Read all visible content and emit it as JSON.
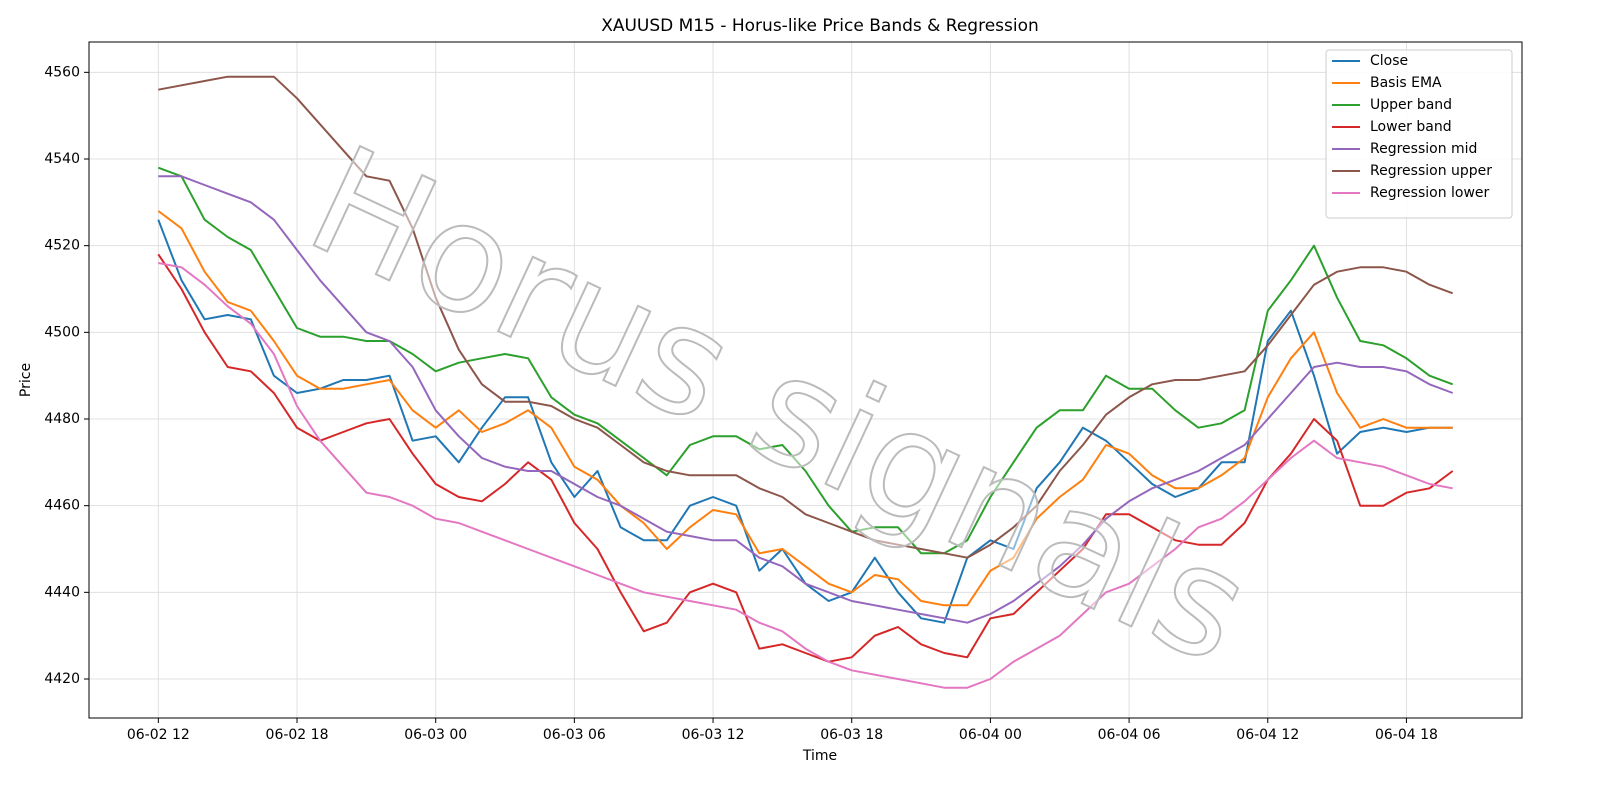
{
  "chart_data": {
    "type": "line",
    "title": "XAUUSD M15 - Horus-like Price Bands & Regression",
    "x_label": "Time",
    "y_label": "Price",
    "watermark": "Horus signals",
    "x": [
      "06-02 12",
      "06-02 13",
      "06-02 14",
      "06-02 15",
      "06-02 16",
      "06-02 17",
      "06-02 18",
      "06-02 19",
      "06-02 20",
      "06-02 21",
      "06-02 22",
      "06-02 23",
      "06-03 00",
      "06-03 01",
      "06-03 02",
      "06-03 03",
      "06-03 04",
      "06-03 05",
      "06-03 06",
      "06-03 07",
      "06-03 08",
      "06-03 09",
      "06-03 10",
      "06-03 11",
      "06-03 12",
      "06-03 13",
      "06-03 14",
      "06-03 15",
      "06-03 16",
      "06-03 17",
      "06-03 18",
      "06-03 19",
      "06-03 20",
      "06-03 21",
      "06-03 22",
      "06-03 23",
      "06-04 00",
      "06-04 01",
      "06-04 02",
      "06-04 03",
      "06-04 04",
      "06-04 05",
      "06-04 06",
      "06-04 07",
      "06-04 08",
      "06-04 09",
      "06-04 10",
      "06-04 11",
      "06-04 12",
      "06-04 13",
      "06-04 14",
      "06-04 15",
      "06-04 16",
      "06-04 17",
      "06-04 18",
      "06-04 19",
      "06-04 20"
    ],
    "series": [
      {
        "name": "Close",
        "color": "#1f77b4",
        "values": [
          4526,
          4512,
          4503,
          4504,
          4503,
          4490,
          4486,
          4487,
          4489,
          4489,
          4490,
          4475,
          4476,
          4470,
          4478,
          4485,
          4485,
          4470,
          4462,
          4468,
          4455,
          4452,
          4452,
          4460,
          4462,
          4460,
          4445,
          4450,
          4442,
          4438,
          4440,
          4448,
          4440,
          4434,
          4433,
          4448,
          4452,
          4450,
          4464,
          4470,
          4478,
          4475,
          4470,
          4465,
          4462,
          4464,
          4470,
          4470,
          4498,
          4505,
          4490,
          4472,
          4477,
          4478,
          4477,
          4478,
          4478
        ]
      },
      {
        "name": "Basis EMA",
        "color": "#ff7f0e",
        "values": [
          4528,
          4524,
          4514,
          4507,
          4505,
          4498,
          4490,
          4487,
          4487,
          4488,
          4489,
          4482,
          4478,
          4482,
          4477,
          4479,
          4482,
          4478,
          4469,
          4466,
          4460,
          4456,
          4450,
          4455,
          4459,
          4458,
          4449,
          4450,
          4446,
          4442,
          4440,
          4444,
          4443,
          4438,
          4437,
          4437,
          4445,
          4448,
          4457,
          4462,
          4466,
          4474,
          4472,
          4467,
          4464,
          4464,
          4467,
          4471,
          4485,
          4494,
          4500,
          4486,
          4478,
          4480,
          4478,
          4478,
          4478
        ]
      },
      {
        "name": "Upper band",
        "color": "#2ca02c",
        "values": [
          4538,
          4536,
          4526,
          4522,
          4519,
          4510,
          4501,
          4499,
          4499,
          4498,
          4498,
          4495,
          4491,
          4493,
          4494,
          4495,
          4494,
          4485,
          4481,
          4479,
          4475,
          4471,
          4467,
          4474,
          4476,
          4476,
          4473,
          4474,
          4468,
          4460,
          4454,
          4455,
          4455,
          4449,
          4449,
          4452,
          4462,
          4470,
          4478,
          4482,
          4482,
          4490,
          4487,
          4487,
          4482,
          4478,
          4479,
          4482,
          4505,
          4512,
          4520,
          4508,
          4498,
          4497,
          4494,
          4490,
          4488
        ]
      },
      {
        "name": "Lower band",
        "color": "#d62728",
        "values": [
          4518,
          4510,
          4500,
          4492,
          4491,
          4486,
          4478,
          4475,
          4477,
          4479,
          4480,
          4472,
          4465,
          4462,
          4461,
          4465,
          4470,
          4466,
          4456,
          4450,
          4440,
          4431,
          4433,
          4440,
          4442,
          4440,
          4427,
          4428,
          4426,
          4424,
          4425,
          4430,
          4432,
          4428,
          4426,
          4425,
          4434,
          4435,
          4440,
          4445,
          4450,
          4458,
          4458,
          4455,
          4452,
          4451,
          4451,
          4456,
          4466,
          4472,
          4480,
          4475,
          4460,
          4460,
          4463,
          4464,
          4468
        ]
      },
      {
        "name": "Regression mid",
        "color": "#9467bd",
        "values": [
          4536,
          4536,
          4534,
          4532,
          4530,
          4526,
          4519,
          4512,
          4506,
          4500,
          4498,
          4492,
          4482,
          4476,
          4471,
          4469,
          4468,
          4468,
          4465,
          4462,
          4460,
          4457,
          4454,
          4453,
          4452,
          4452,
          4448,
          4446,
          4442,
          4440,
          4438,
          4437,
          4436,
          4435,
          4434,
          4433,
          4435,
          4438,
          4442,
          4446,
          4451,
          4457,
          4461,
          4464,
          4466,
          4468,
          4471,
          4474,
          4480,
          4486,
          4492,
          4493,
          4492,
          4492,
          4491,
          4488,
          4486
        ]
      },
      {
        "name": "Regression upper",
        "color": "#8c564b",
        "values": [
          4556,
          4557,
          4558,
          4559,
          4559,
          4559,
          4554,
          4548,
          4542,
          4536,
          4535,
          4524,
          4508,
          4496,
          4488,
          4484,
          4484,
          4483,
          4480,
          4478,
          4474,
          4470,
          4468,
          4467,
          4467,
          4467,
          4464,
          4462,
          4458,
          4456,
          4454,
          4452,
          4451,
          4450,
          4449,
          4448,
          4451,
          4455,
          4460,
          4468,
          4474,
          4481,
          4485,
          4488,
          4489,
          4489,
          4490,
          4491,
          4497,
          4504,
          4511,
          4514,
          4515,
          4515,
          4514,
          4511,
          4509
        ]
      },
      {
        "name": "Regression lower",
        "color": "#e377c2",
        "values": [
          4516,
          4515,
          4511,
          4506,
          4502,
          4495,
          4483,
          4475,
          4469,
          4463,
          4462,
          4460,
          4457,
          4456,
          4454,
          4452,
          4450,
          4448,
          4446,
          4444,
          4442,
          4440,
          4439,
          4438,
          4437,
          4436,
          4433,
          4431,
          4427,
          4424,
          4422,
          4421,
          4420,
          4419,
          4418,
          4418,
          4420,
          4424,
          4427,
          4430,
          4435,
          4440,
          4442,
          4446,
          4450,
          4455,
          4457,
          4461,
          4466,
          4471,
          4475,
          4471,
          4470,
          4469,
          4467,
          4465,
          4464
        ]
      }
    ],
    "xlim": [
      "06-02 09",
      "06-04 23"
    ],
    "xticks": [
      "06-02 12",
      "06-02 18",
      "06-03 00",
      "06-03 06",
      "06-03 12",
      "06-03 18",
      "06-04 00",
      "06-04 06",
      "06-04 12",
      "06-04 18"
    ],
    "ylim": [
      4411,
      4567
    ],
    "yticks": [
      4420,
      4440,
      4460,
      4480,
      4500,
      4520,
      4540,
      4560
    ],
    "grid": true,
    "legend": "upper right"
  }
}
